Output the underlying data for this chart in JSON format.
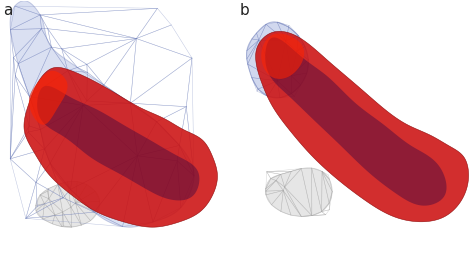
{
  "panel_a_label": "a",
  "panel_b_label": "b",
  "label_fontsize": 11,
  "label_color": "#222222",
  "background_color": "#ffffff",
  "fig_width": 4.74,
  "fig_height": 2.71,
  "dpi": 100,
  "blue_mesh_facecolor": "#a0aedd",
  "blue_mesh_alpha": 0.38,
  "blue_mesh_edgecolor": "#7080bb",
  "blue_mesh_edgealpha": 0.7,
  "red_color": "#cc1111",
  "red_alpha": 0.88,
  "red_edge": "#880000",
  "dark_vein_color": "#220044",
  "dark_vein_alpha": 0.38,
  "purplish_color": "#881133",
  "purplish_alpha": 0.5,
  "gray_face": "#c8c8c8",
  "gray_edge": "#aaaaaa",
  "gray_alpha": 0.45
}
